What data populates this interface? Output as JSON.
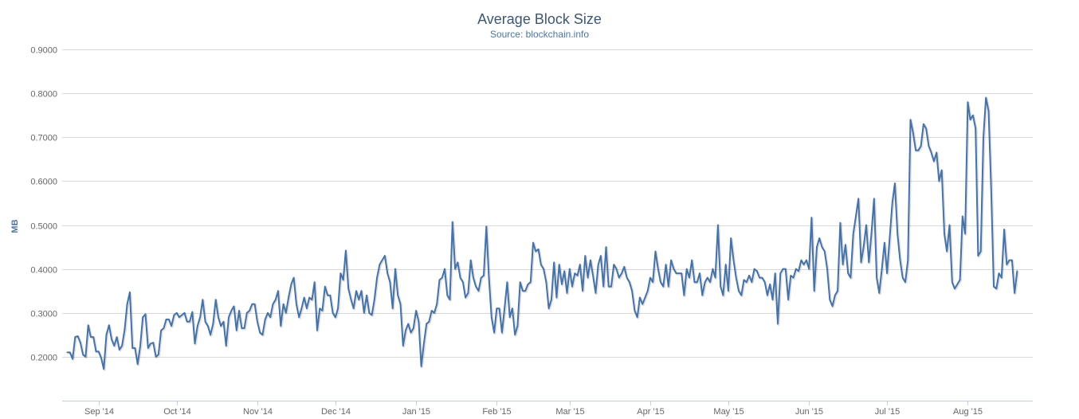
{
  "chart_data": {
    "type": "line",
    "title": "Average Block Size",
    "subtitle": "Source: blockchain.info",
    "xlabel": "",
    "ylabel": "MB",
    "ylim": [
      0.1,
      0.9
    ],
    "y_ticks": [
      "0.2000",
      "0.3000",
      "0.4000",
      "0.5000",
      "0.6000",
      "0.7000",
      "0.8000",
      "0.9000"
    ],
    "y_tick_values": [
      0.2,
      0.3,
      0.4,
      0.5,
      0.6,
      0.7,
      0.8,
      0.9
    ],
    "x_ticks": [
      "Sep '14",
      "Oct '14",
      "Nov '14",
      "Dec '14",
      "Jan '15",
      "Feb '15",
      "Mar '15",
      "Apr '15",
      "May '15",
      "Jun '15",
      "Jul '15",
      "Aug '15"
    ],
    "x_tick_dates": [
      "2014-09-01",
      "2014-10-01",
      "2014-11-01",
      "2014-12-01",
      "2015-01-01",
      "2015-02-01",
      "2015-03-01",
      "2015-04-01",
      "2015-05-01",
      "2015-06-01",
      "2015-07-01",
      "2015-08-01"
    ],
    "x_range": [
      "2014-08-18",
      "2015-08-26"
    ],
    "grid": true,
    "legend": "none",
    "series": [
      {
        "color": "#4572a7",
        "start_date": "2014-08-20",
        "step_days": 1,
        "values": [
          0.21,
          0.21,
          0.195,
          0.245,
          0.247,
          0.232,
          0.205,
          0.2,
          0.272,
          0.245,
          0.245,
          0.212,
          0.212,
          0.197,
          0.172,
          0.25,
          0.272,
          0.24,
          0.225,
          0.245,
          0.216,
          0.225,
          0.262,
          0.32,
          0.347,
          0.22,
          0.22,
          0.183,
          0.225,
          0.29,
          0.297,
          0.22,
          0.23,
          0.232,
          0.2,
          0.205,
          0.26,
          0.265,
          0.285,
          0.285,
          0.27,
          0.295,
          0.3,
          0.29,
          0.295,
          0.3,
          0.28,
          0.28,
          0.302,
          0.23,
          0.27,
          0.29,
          0.33,
          0.28,
          0.27,
          0.25,
          0.275,
          0.33,
          0.29,
          0.27,
          0.28,
          0.225,
          0.29,
          0.305,
          0.315,
          0.26,
          0.305,
          0.265,
          0.265,
          0.3,
          0.305,
          0.32,
          0.32,
          0.28,
          0.255,
          0.25,
          0.285,
          0.3,
          0.29,
          0.32,
          0.33,
          0.35,
          0.27,
          0.32,
          0.3,
          0.335,
          0.365,
          0.38,
          0.32,
          0.29,
          0.31,
          0.335,
          0.31,
          0.335,
          0.33,
          0.37,
          0.26,
          0.31,
          0.305,
          0.36,
          0.34,
          0.34,
          0.3,
          0.29,
          0.31,
          0.39,
          0.375,
          0.442,
          0.355,
          0.33,
          0.31,
          0.35,
          0.33,
          0.35,
          0.3,
          0.34,
          0.3,
          0.295,
          0.33,
          0.38,
          0.41,
          0.42,
          0.43,
          0.39,
          0.37,
          0.31,
          0.4,
          0.34,
          0.32,
          0.225,
          0.26,
          0.275,
          0.255,
          0.265,
          0.305,
          0.28,
          0.178,
          0.23,
          0.275,
          0.28,
          0.305,
          0.3,
          0.32,
          0.375,
          0.38,
          0.4,
          0.34,
          0.33,
          0.507,
          0.4,
          0.415,
          0.38,
          0.37,
          0.335,
          0.345,
          0.42,
          0.38,
          0.36,
          0.35,
          0.38,
          0.385,
          0.497,
          0.38,
          0.29,
          0.255,
          0.31,
          0.31,
          0.255,
          0.31,
          0.37,
          0.29,
          0.31,
          0.25,
          0.27,
          0.37,
          0.35,
          0.35,
          0.365,
          0.37,
          0.46,
          0.44,
          0.445,
          0.41,
          0.4,
          0.37,
          0.31,
          0.33,
          0.415,
          0.335,
          0.41,
          0.365,
          0.395,
          0.345,
          0.4,
          0.36,
          0.39,
          0.385,
          0.41,
          0.35,
          0.43,
          0.38,
          0.42,
          0.385,
          0.345,
          0.41,
          0.43,
          0.36,
          0.45,
          0.36,
          0.36,
          0.41,
          0.4,
          0.38,
          0.39,
          0.405,
          0.38,
          0.37,
          0.35,
          0.305,
          0.29,
          0.335,
          0.32,
          0.335,
          0.35,
          0.38,
          0.37,
          0.44,
          0.4,
          0.37,
          0.36,
          0.41,
          0.36,
          0.42,
          0.4,
          0.39,
          0.39,
          0.39,
          0.34,
          0.4,
          0.38,
          0.42,
          0.37,
          0.37,
          0.39,
          0.34,
          0.37,
          0.38,
          0.37,
          0.4,
          0.38,
          0.5,
          0.36,
          0.34,
          0.41,
          0.35,
          0.47,
          0.42,
          0.38,
          0.35,
          0.34,
          0.375,
          0.37,
          0.385,
          0.37,
          0.4,
          0.395,
          0.38,
          0.38,
          0.37,
          0.34,
          0.365,
          0.33,
          0.39,
          0.275,
          0.39,
          0.4,
          0.4,
          0.33,
          0.385,
          0.38,
          0.4,
          0.395,
          0.42,
          0.41,
          0.42,
          0.4,
          0.517,
          0.35,
          0.45,
          0.47,
          0.45,
          0.44,
          0.4,
          0.33,
          0.315,
          0.34,
          0.35,
          0.505,
          0.41,
          0.455,
          0.39,
          0.38,
          0.48,
          0.52,
          0.56,
          0.415,
          0.45,
          0.5,
          0.415,
          0.48,
          0.56,
          0.38,
          0.345,
          0.4,
          0.46,
          0.39,
          0.47,
          0.55,
          0.595,
          0.48,
          0.42,
          0.38,
          0.37,
          0.42,
          0.74,
          0.71,
          0.67,
          0.67,
          0.68,
          0.73,
          0.72,
          0.68,
          0.665,
          0.645,
          0.665,
          0.6,
          0.625,
          0.48,
          0.44,
          0.5,
          0.37,
          0.355,
          0.365,
          0.375,
          0.52,
          0.48,
          0.78,
          0.74,
          0.75,
          0.72,
          0.43,
          0.44,
          0.7,
          0.79,
          0.76,
          0.58,
          0.36,
          0.355,
          0.39,
          0.38,
          0.49,
          0.41,
          0.42,
          0.42,
          0.345,
          0.395
        ]
      }
    ]
  }
}
